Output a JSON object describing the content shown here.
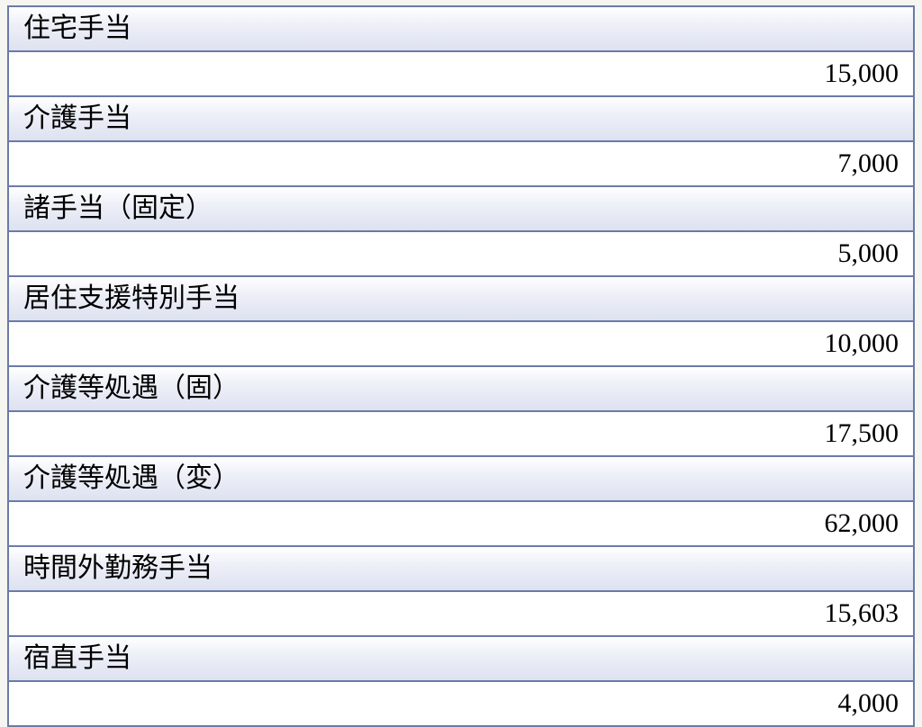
{
  "table": {
    "type": "table",
    "structure": "alternating-label-value-rows",
    "border_color": "#6b7aa8",
    "label_bg_gradient": [
      "#ffffff",
      "#eef0f8",
      "#dde2f0"
    ],
    "value_bg": "#ffffff",
    "text_color": "#000000",
    "label_fontsize": 30,
    "value_fontsize": 30,
    "label_align": "left",
    "value_align": "right",
    "rows": [
      {
        "label": "住宅手当",
        "value": "15,000"
      },
      {
        "label": "介護手当",
        "value": "7,000"
      },
      {
        "label": "諸手当（固定）",
        "value": "5,000"
      },
      {
        "label": "居住支援特別手当",
        "value": "10,000"
      },
      {
        "label": "介護等処遇（固）",
        "value": "17,500"
      },
      {
        "label": "介護等処遇（変）",
        "value": "62,000"
      },
      {
        "label": "時間外勤務手当",
        "value": "15,603"
      },
      {
        "label": "宿直手当",
        "value": "4,000"
      }
    ]
  }
}
